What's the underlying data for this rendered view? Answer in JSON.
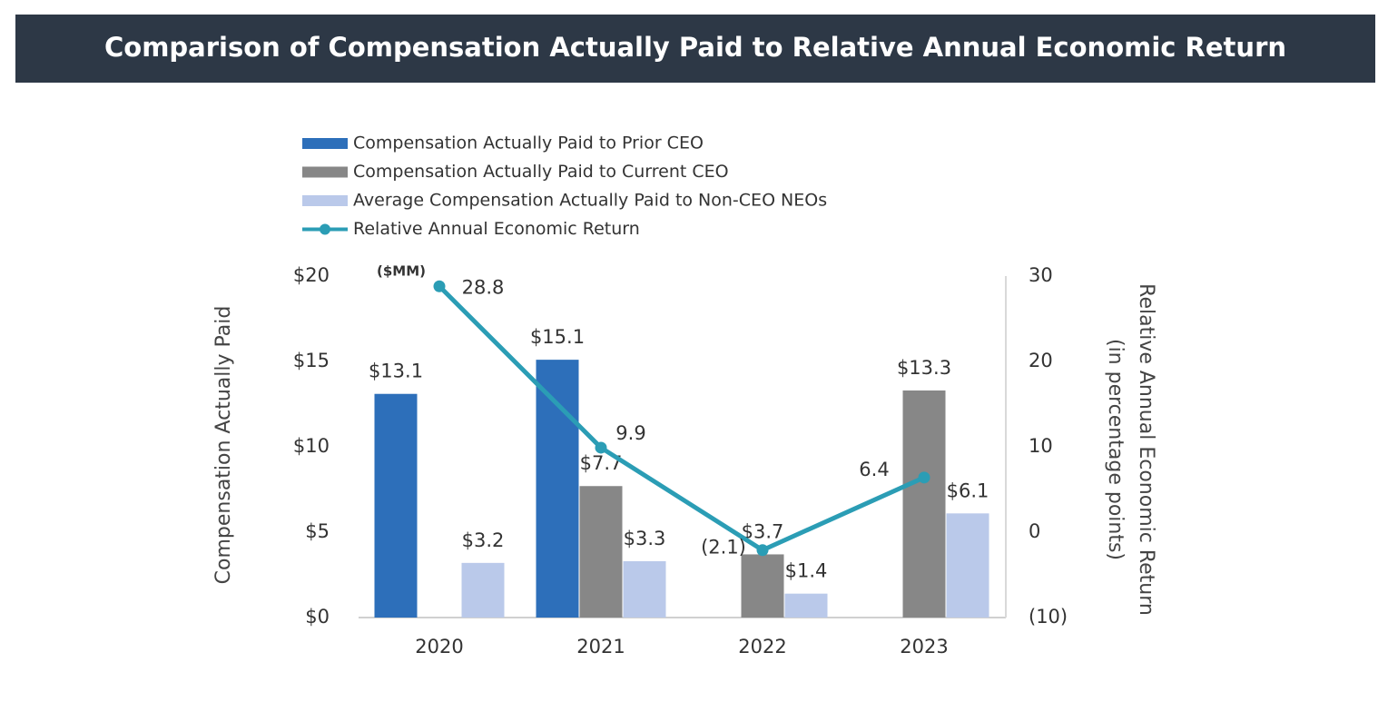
{
  "chart_data": {
    "type": "bar-line",
    "title": "Comparison of Compensation Actually Paid to Relative Annual Economic Return",
    "ylabel": "Compensation Actually Paid",
    "y2label": [
      "Relative Annual Economic Return",
      "(in percentage points)"
    ],
    "unit_note": "($MM)",
    "categories": [
      "2020",
      "2021",
      "2022",
      "2023"
    ],
    "ylim": [
      0,
      20
    ],
    "yticks": [
      {
        "value": 0,
        "label": "$0"
      },
      {
        "value": 5,
        "label": "$5"
      },
      {
        "value": 10,
        "label": "$10"
      },
      {
        "value": 15,
        "label": "$15"
      },
      {
        "value": 20,
        "label": "$20"
      }
    ],
    "y2lim": [
      -10,
      30
    ],
    "y2ticks": [
      {
        "value": -10,
        "label": "(10)"
      },
      0,
      10,
      20,
      30
    ],
    "series": [
      {
        "name": "Compensation Actually Paid to Prior CEO",
        "type": "bar",
        "color": "#2d6fba",
        "label_color": "#2d6fba",
        "values": [
          13.1,
          15.1,
          null,
          null
        ],
        "value_labels": [
          "$13.1",
          "$15.1",
          null,
          null
        ]
      },
      {
        "name": "Compensation Actually Paid to Current CEO",
        "type": "bar",
        "color": "#878787",
        "label_color": "#7a7a7a",
        "values": [
          null,
          7.7,
          3.7,
          13.3
        ],
        "value_labels": [
          null,
          "$7.7",
          "$3.7",
          "$13.3"
        ]
      },
      {
        "name": "Average Compensation Actually Paid to Non-CEO NEOs",
        "type": "bar",
        "color": "#bac9ea",
        "label_color": "#a9b9e0",
        "values": [
          3.2,
          3.3,
          1.4,
          6.1
        ],
        "value_labels": [
          "$3.2",
          "$3.3",
          "$1.4",
          "$6.1"
        ]
      },
      {
        "name": "Relative Annual Economic Return",
        "type": "line",
        "axis": "y2",
        "color": "#2b9db5",
        "label_color": "#2b9db5",
        "values": [
          28.8,
          9.9,
          -2.1,
          6.4
        ],
        "value_labels": [
          "28.8",
          "9.9",
          "(2.1)",
          "6.4"
        ]
      }
    ]
  }
}
